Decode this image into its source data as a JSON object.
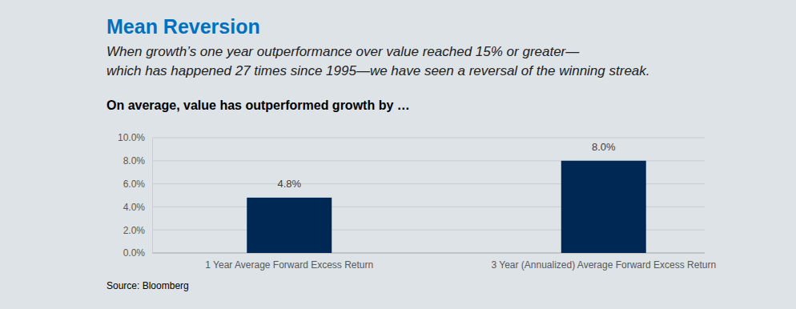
{
  "chart_data": {
    "type": "bar",
    "title": "Mean Reversion",
    "subtitle": [
      "When growth’s one year outperformance over value reached 15% or greater—",
      "which has happened 27 times since 1995—we have seen a reversal of the winning streak."
    ],
    "annotations": [
      "On average, value has outperformed growth by …",
      "Source: Bloomberg"
    ],
    "categories": [
      "1 Year Average Forward Excess Return",
      "3 Year (Annualized) Average Forward Excess Return"
    ],
    "values": [
      4.8,
      8.0
    ],
    "value_labels": [
      "4.8%",
      "8.0%"
    ],
    "color": "#002855",
    "ylim": [
      0,
      10
    ],
    "yticks": [
      {
        "value": 0,
        "label": "0.0%"
      },
      {
        "value": 2,
        "label": "2.0%"
      },
      {
        "value": 4,
        "label": "4.0%"
      },
      {
        "value": 6,
        "label": "6.0%"
      },
      {
        "value": 8,
        "label": "8.0%"
      },
      {
        "value": 10,
        "label": "10.0%"
      }
    ],
    "grid": true,
    "data_labels": true
  }
}
